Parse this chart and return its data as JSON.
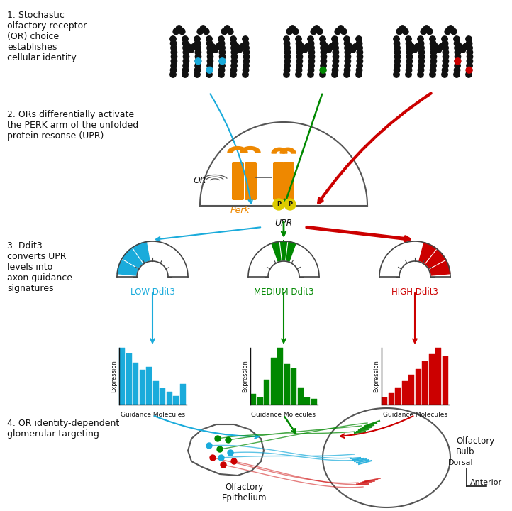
{
  "bg_color": "#ffffff",
  "cyan": "#1aabdb",
  "green": "#008800",
  "red": "#cc0000",
  "orange": "#ee8800",
  "yellow": "#ddcc00",
  "black": "#111111",
  "gray": "#555555",
  "step1_text": "1. Stochastic\nolfactory receptor\n(OR) choice\nestablishes\ncellular identity",
  "step2_text": "2. ORs differentially activate\nthe PERK arm of the unfolded\nprotein resonse (UPR)",
  "step3_text": "3. Ddit3\nconverts UPR\nlevels into\naxon guidance\nsignatures",
  "step4_text": "4. OR identity-dependent\nglomerular targeting",
  "low_label": "LOW Ddit3",
  "med_label": "MEDIUM Ddit3",
  "high_label": "HIGH Ddit3",
  "guidance_label": "Guidance Molecules",
  "expression_label": "Expression",
  "perk_label": "Perk",
  "upr_label": "UPR",
  "or_label": "OR",
  "ob_label": "Olfactory\nBulb",
  "oe_label": "Olfactory\nEpithelium",
  "dorsal_label": "Dorsal",
  "anterior_label": "Anterior",
  "blue_bars": [
    0.78,
    0.7,
    0.58,
    0.48,
    0.52,
    0.32,
    0.22,
    0.18,
    0.12,
    0.28
  ],
  "green_bars": [
    0.18,
    0.12,
    0.42,
    0.78,
    0.95,
    0.68,
    0.6,
    0.28,
    0.12,
    0.1
  ],
  "red_bars": [
    0.12,
    0.18,
    0.28,
    0.38,
    0.48,
    0.58,
    0.7,
    0.82,
    0.92,
    0.78
  ]
}
